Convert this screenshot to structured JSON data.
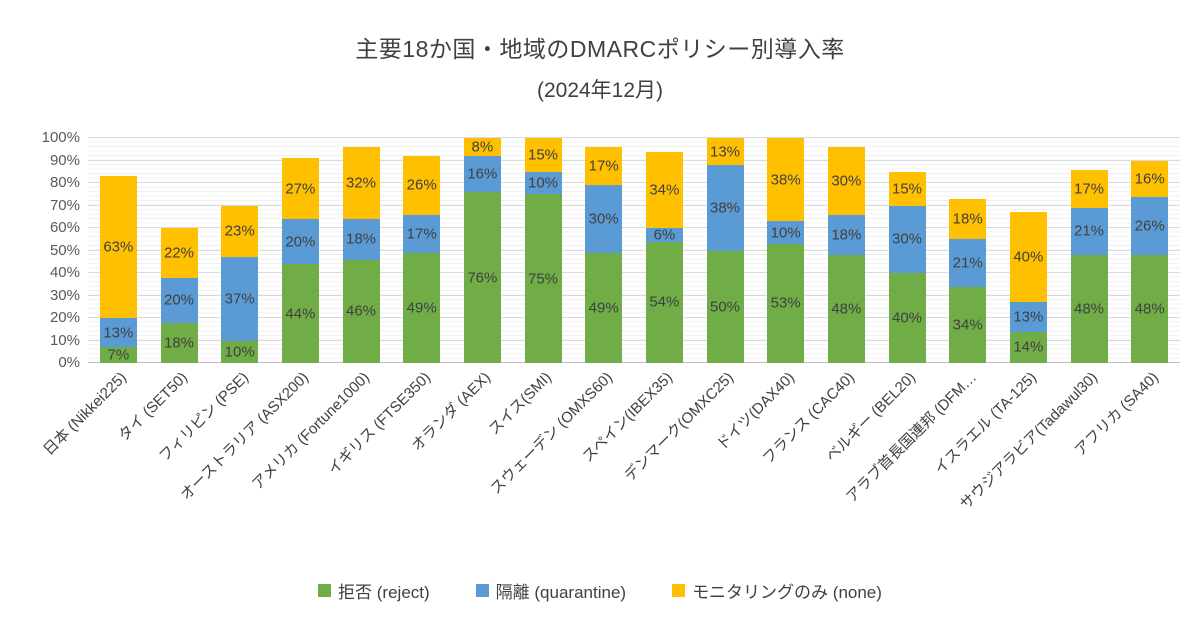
{
  "chart_data": {
    "type": "bar",
    "stacked": true,
    "title": "主要18か国・地域のDMARCポリシー別導入率",
    "subtitle": "(2024年12月)",
    "xlabel": "",
    "ylabel": "",
    "ylim": [
      0,
      100
    ],
    "y_ticks": [
      "0%",
      "10%",
      "20%",
      "30%",
      "40%",
      "50%",
      "60%",
      "70%",
      "80%",
      "90%",
      "100%"
    ],
    "grid": "horizontal major and minor gridlines",
    "legend_position": "bottom",
    "label_suffix": "%",
    "categories": [
      "日本 (Nikkei225)",
      "タイ (SET50)",
      "フィリピン (PSE)",
      "オーストラリア (ASX200)",
      "アメリカ (Fortune1000)",
      "イギリス (FTSE350)",
      "オランダ (AEX)",
      "スイス(SMI)",
      "スウェーデン (OMXS60)",
      "スペイン(IBEX35)",
      "デンマーク(OMXC25)",
      "ドイツ(DAX40)",
      "フランス (CAC40)",
      "ベルギー (BEL20)",
      "アラブ首長国連邦 (DFM…",
      "イスラエル (TA-125)",
      "サウジアラビア(Tadawul30)",
      "アフリカ (SA40)"
    ],
    "series": [
      {
        "key": "reject",
        "name": "拒否 (reject)",
        "color": "#70AD47",
        "values": [
          7,
          18,
          10,
          44,
          46,
          49,
          76,
          75,
          49,
          54,
          50,
          53,
          48,
          40,
          34,
          14,
          48,
          48
        ]
      },
      {
        "key": "quarantine",
        "name": "隔離 (quarantine)",
        "color": "#5B9BD5",
        "values": [
          13,
          20,
          37,
          20,
          18,
          17,
          16,
          10,
          30,
          6,
          38,
          10,
          18,
          30,
          21,
          13,
          21,
          26
        ]
      },
      {
        "key": "none",
        "name": "モニタリングのみ (none)",
        "color": "#FFC000",
        "values": [
          63,
          22,
          23,
          27,
          32,
          26,
          8,
          15,
          17,
          34,
          13,
          38,
          30,
          15,
          18,
          40,
          17,
          16
        ]
      }
    ]
  }
}
